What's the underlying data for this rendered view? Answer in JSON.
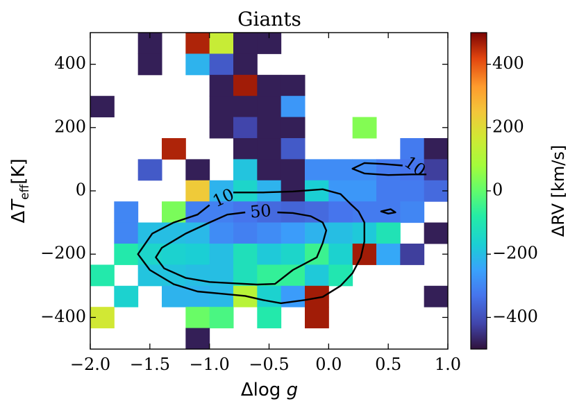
{
  "chart_data": {
    "type": "heatmap",
    "title": "Giants",
    "xlabel": "Δlog g",
    "ylabel": "ΔT_eff [K]",
    "xlim": [
      -2.0,
      1.0
    ],
    "ylim": [
      -500,
      500
    ],
    "x_bin_width": 0.2,
    "y_bin_width": 66.667,
    "x_ticks": [
      -2.0,
      -1.5,
      -1.0,
      -0.5,
      0.0,
      0.5,
      1.0
    ],
    "x_tick_labels": [
      "−2.0",
      "−1.5",
      "−1.0",
      "−0.5",
      "0.0",
      "0.5",
      "1.0"
    ],
    "y_ticks": [
      -400,
      -200,
      0,
      200,
      400
    ],
    "y_tick_labels": [
      "−400",
      "−200",
      "0",
      "200",
      "400"
    ],
    "colorbar": {
      "label": "ΔRV [km/s]",
      "range": [
        -500,
        500
      ],
      "colormap": "turbo",
      "ticks": [
        -400,
        -200,
        0,
        200,
        400
      ],
      "tick_labels": [
        "−400",
        "−200",
        "0",
        "200",
        "400"
      ]
    },
    "cells": [
      {
        "x": -1.5,
        "y": 466.7,
        "value": -480
      },
      {
        "x": -1.1,
        "y": 466.7,
        "value": 460
      },
      {
        "x": -0.9,
        "y": 466.7,
        "value": 150
      },
      {
        "x": -0.7,
        "y": 466.7,
        "value": -480
      },
      {
        "x": -0.5,
        "y": 466.7,
        "value": -480
      },
      {
        "x": -1.5,
        "y": 400.0,
        "value": -480
      },
      {
        "x": -1.1,
        "y": 400.0,
        "value": -220
      },
      {
        "x": -0.9,
        "y": 400.0,
        "value": -380
      },
      {
        "x": -0.7,
        "y": 400.0,
        "value": -480
      },
      {
        "x": -0.9,
        "y": 333.3,
        "value": -480
      },
      {
        "x": -0.7,
        "y": 333.3,
        "value": 470
      },
      {
        "x": -0.5,
        "y": 333.3,
        "value": -480
      },
      {
        "x": -0.3,
        "y": 333.3,
        "value": -480
      },
      {
        "x": -1.9,
        "y": 266.7,
        "value": -480
      },
      {
        "x": -0.9,
        "y": 266.7,
        "value": -480
      },
      {
        "x": -0.7,
        "y": 266.7,
        "value": -480
      },
      {
        "x": -0.5,
        "y": 266.7,
        "value": -480
      },
      {
        "x": -0.3,
        "y": 266.7,
        "value": -270
      },
      {
        "x": -0.9,
        "y": 200.0,
        "value": -480
      },
      {
        "x": -0.7,
        "y": 200.0,
        "value": -420
      },
      {
        "x": -0.5,
        "y": 200.0,
        "value": -480
      },
      {
        "x": -0.3,
        "y": 200.0,
        "value": -480
      },
      {
        "x": 0.3,
        "y": 200.0,
        "value": 40
      },
      {
        "x": -1.3,
        "y": 133.3,
        "value": 460
      },
      {
        "x": -0.7,
        "y": 133.3,
        "value": -480
      },
      {
        "x": -0.5,
        "y": 133.3,
        "value": -480
      },
      {
        "x": -0.3,
        "y": 133.3,
        "value": -380
      },
      {
        "x": 0.7,
        "y": 133.3,
        "value": -320
      },
      {
        "x": 0.9,
        "y": 133.3,
        "value": -480
      },
      {
        "x": -1.5,
        "y": 66.7,
        "value": -380
      },
      {
        "x": -1.1,
        "y": 66.7,
        "value": -480
      },
      {
        "x": -0.7,
        "y": 66.7,
        "value": -190
      },
      {
        "x": -0.5,
        "y": 66.7,
        "value": -480
      },
      {
        "x": -0.3,
        "y": 66.7,
        "value": -480
      },
      {
        "x": -0.1,
        "y": 66.7,
        "value": -290
      },
      {
        "x": 0.1,
        "y": 66.7,
        "value": -290
      },
      {
        "x": 0.3,
        "y": 66.7,
        "value": -290
      },
      {
        "x": 0.5,
        "y": 66.7,
        "value": -320
      },
      {
        "x": 0.7,
        "y": 66.7,
        "value": -330
      },
      {
        "x": 0.9,
        "y": 66.7,
        "value": -430
      },
      {
        "x": -1.1,
        "y": 0.0,
        "value": 240
      },
      {
        "x": -0.9,
        "y": 0.0,
        "value": -220
      },
      {
        "x": -0.7,
        "y": 0.0,
        "value": -150
      },
      {
        "x": -0.5,
        "y": 0.0,
        "value": -220
      },
      {
        "x": -0.3,
        "y": 0.0,
        "value": -480
      },
      {
        "x": -0.1,
        "y": 0.0,
        "value": -170
      },
      {
        "x": 0.1,
        "y": 0.0,
        "value": -270
      },
      {
        "x": 0.3,
        "y": 0.0,
        "value": -270
      },
      {
        "x": 0.5,
        "y": 0.0,
        "value": -320
      },
      {
        "x": 0.7,
        "y": 0.0,
        "value": -320
      },
      {
        "x": 0.9,
        "y": 0.0,
        "value": -350
      },
      {
        "x": -1.7,
        "y": -66.7,
        "value": -300
      },
      {
        "x": -1.3,
        "y": -66.7,
        "value": 30
      },
      {
        "x": -1.1,
        "y": -66.7,
        "value": -310
      },
      {
        "x": -0.9,
        "y": -66.7,
        "value": -310
      },
      {
        "x": -0.7,
        "y": -66.7,
        "value": -330
      },
      {
        "x": -0.5,
        "y": -66.7,
        "value": -350
      },
      {
        "x": -0.3,
        "y": -66.7,
        "value": -360
      },
      {
        "x": -0.1,
        "y": -66.7,
        "value": -350
      },
      {
        "x": 0.1,
        "y": -66.7,
        "value": -330
      },
      {
        "x": 0.3,
        "y": -66.7,
        "value": -320
      },
      {
        "x": 0.5,
        "y": -66.7,
        "value": -320
      },
      {
        "x": 0.7,
        "y": -66.7,
        "value": -300
      },
      {
        "x": -1.7,
        "y": -133.3,
        "value": -300
      },
      {
        "x": -1.5,
        "y": -133.3,
        "value": -200
      },
      {
        "x": -1.3,
        "y": -133.3,
        "value": -200
      },
      {
        "x": -1.1,
        "y": -133.3,
        "value": -210
      },
      {
        "x": -0.9,
        "y": -133.3,
        "value": -290
      },
      {
        "x": -0.7,
        "y": -133.3,
        "value": -310
      },
      {
        "x": -0.5,
        "y": -133.3,
        "value": -290
      },
      {
        "x": -0.3,
        "y": -133.3,
        "value": -260
      },
      {
        "x": -0.1,
        "y": -133.3,
        "value": -220
      },
      {
        "x": 0.1,
        "y": -133.3,
        "value": -200
      },
      {
        "x": 0.3,
        "y": -133.3,
        "value": -180
      },
      {
        "x": 0.5,
        "y": -133.3,
        "value": -110
      },
      {
        "x": 0.9,
        "y": -133.3,
        "value": -480
      },
      {
        "x": -1.7,
        "y": -200.0,
        "value": -90
      },
      {
        "x": -1.5,
        "y": -200.0,
        "value": -150
      },
      {
        "x": -1.3,
        "y": -200.0,
        "value": -160
      },
      {
        "x": -1.1,
        "y": -200.0,
        "value": -170
      },
      {
        "x": -0.9,
        "y": -200.0,
        "value": -200
      },
      {
        "x": -0.7,
        "y": -200.0,
        "value": -120
      },
      {
        "x": -0.5,
        "y": -200.0,
        "value": -180
      },
      {
        "x": -0.3,
        "y": -200.0,
        "value": -150
      },
      {
        "x": -0.1,
        "y": -200.0,
        "value": -50
      },
      {
        "x": 0.1,
        "y": -200.0,
        "value": -160
      },
      {
        "x": 0.3,
        "y": -200.0,
        "value": 470
      },
      {
        "x": 0.5,
        "y": -200.0,
        "value": -240
      },
      {
        "x": 0.7,
        "y": -200.0,
        "value": -430
      },
      {
        "x": -1.9,
        "y": -266.7,
        "value": -90
      },
      {
        "x": -1.5,
        "y": -266.7,
        "value": -190
      },
      {
        "x": -1.3,
        "y": -266.7,
        "value": -190
      },
      {
        "x": -1.1,
        "y": -266.7,
        "value": -200
      },
      {
        "x": -0.9,
        "y": -266.7,
        "value": -200
      },
      {
        "x": -0.7,
        "y": -266.7,
        "value": -120
      },
      {
        "x": -0.5,
        "y": -266.7,
        "value": -60
      },
      {
        "x": -0.3,
        "y": -266.7,
        "value": -60
      },
      {
        "x": -0.1,
        "y": -266.7,
        "value": -180
      },
      {
        "x": 0.1,
        "y": -266.7,
        "value": -100
      },
      {
        "x": -1.7,
        "y": -333.3,
        "value": -160
      },
      {
        "x": -1.3,
        "y": -333.3,
        "value": -220
      },
      {
        "x": -1.1,
        "y": -333.3,
        "value": -220
      },
      {
        "x": -0.9,
        "y": -333.3,
        "value": -210
      },
      {
        "x": -0.7,
        "y": -333.3,
        "value": 120
      },
      {
        "x": -0.5,
        "y": -333.3,
        "value": -160
      },
      {
        "x": -0.3,
        "y": -333.3,
        "value": -260
      },
      {
        "x": -0.1,
        "y": -333.3,
        "value": 470
      },
      {
        "x": 0.9,
        "y": -333.3,
        "value": -480
      },
      {
        "x": -1.9,
        "y": -400.0,
        "value": 170
      },
      {
        "x": -1.1,
        "y": -400.0,
        "value": 10
      },
      {
        "x": -0.9,
        "y": -400.0,
        "value": -30
      },
      {
        "x": -0.5,
        "y": -400.0,
        "value": -90
      },
      {
        "x": -0.1,
        "y": -400.0,
        "value": 470
      },
      {
        "x": -1.1,
        "y": -466.7,
        "value": -480
      }
    ],
    "contours": [
      {
        "level": 10,
        "label": "10",
        "label_at": {
          "x": -0.88,
          "y": -25
        },
        "label_rotation_deg": -25,
        "points": [
          [
            -0.8,
            -5
          ],
          [
            -0.55,
            -5
          ],
          [
            -0.3,
            -2
          ],
          [
            -0.05,
            5
          ],
          [
            0.1,
            -10
          ],
          [
            0.18,
            -40
          ],
          [
            0.25,
            -65
          ],
          [
            0.3,
            -100
          ],
          [
            0.3,
            -160
          ],
          [
            0.27,
            -210
          ],
          [
            0.2,
            -260
          ],
          [
            0.1,
            -300
          ],
          [
            -0.05,
            -335
          ],
          [
            -0.2,
            -345
          ],
          [
            -0.4,
            -355
          ],
          [
            -0.55,
            -345
          ],
          [
            -0.7,
            -332
          ],
          [
            -0.9,
            -325
          ],
          [
            -1.1,
            -318
          ],
          [
            -1.3,
            -295
          ],
          [
            -1.5,
            -250
          ],
          [
            -1.6,
            -200
          ],
          [
            -1.48,
            -135
          ],
          [
            -1.3,
            -100
          ],
          [
            -1.1,
            -75
          ],
          [
            -1.0,
            -45
          ]
        ]
      },
      {
        "level": 50,
        "label": "50",
        "label_at": {
          "x": -0.57,
          "y": -68
        },
        "label_rotation_deg": -5,
        "points": [
          [
            -0.7,
            -68
          ],
          [
            -0.85,
            -75
          ],
          [
            -1.0,
            -100
          ],
          [
            -1.2,
            -135
          ],
          [
            -1.4,
            -180
          ],
          [
            -1.45,
            -210
          ],
          [
            -1.38,
            -245
          ],
          [
            -1.2,
            -275
          ],
          [
            -1.0,
            -288
          ],
          [
            -0.8,
            -292
          ],
          [
            -0.6,
            -296
          ],
          [
            -0.45,
            -294
          ],
          [
            -0.3,
            -250
          ],
          [
            -0.1,
            -210
          ],
          [
            -0.05,
            -165
          ],
          [
            -0.02,
            -125
          ],
          [
            -0.05,
            -100
          ],
          [
            -0.15,
            -80
          ],
          [
            -0.3,
            -70
          ],
          [
            -0.43,
            -68
          ]
        ]
      },
      {
        "level": 10,
        "label": "10",
        "label_at": {
          "x": 0.72,
          "y": 75
        },
        "label_rotation_deg": 35,
        "points": [
          [
            0.62,
            80
          ],
          [
            0.45,
            85
          ],
          [
            0.3,
            88
          ],
          [
            0.2,
            70
          ],
          [
            0.3,
            55
          ],
          [
            0.5,
            50
          ],
          [
            0.7,
            52
          ],
          [
            0.82,
            52
          ]
        ]
      },
      {
        "level": 10,
        "label": "",
        "closed": true,
        "points": [
          [
            0.44,
            -65
          ],
          [
            0.52,
            -58
          ],
          [
            0.56,
            -68
          ],
          [
            0.5,
            -72
          ]
        ]
      }
    ]
  }
}
